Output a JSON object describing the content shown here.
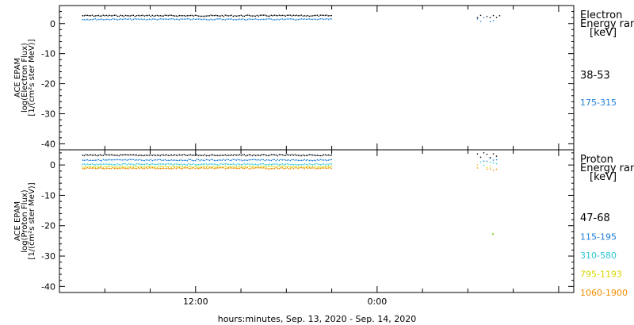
{
  "xlabel": "hours:minutes, Sep. 13, 2020 - Sep. 14, 2020",
  "x_tick_labels": [
    "12:00",
    "0:00"
  ],
  "chart_data": [
    {
      "type": "scatter",
      "ylabel_lines": [
        "ACE EPAM",
        "log(Electron Flux)",
        "[1/(cm²s ster MeV)]"
      ],
      "ylim": [
        -42,
        6
      ],
      "yticks": [
        0,
        -10,
        -20,
        -30,
        -40
      ],
      "x_unit": "hours since Sep. 13, 2020 00:00",
      "xlim": [
        3,
        37
      ],
      "legend": {
        "title_lines": [
          "Electron",
          "Energy ranges",
          "[keV]"
        ]
      },
      "series": [
        {
          "name": "38-53",
          "color": "#000000",
          "value": 2.8,
          "segments": [
            [
              4.5,
              21.0
            ],
            [
              30.6,
              32.1
            ]
          ]
        },
        {
          "name": "175-315",
          "color": "#1e7fd6",
          "value": 1.6,
          "segments": [
            [
              4.5,
              21.0
            ],
            [
              30.6,
              31.7
            ]
          ]
        }
      ]
    },
    {
      "type": "scatter",
      "ylabel_lines": [
        "ACE EPAM",
        "log(Proton Flux)",
        "[1/(cm²s ster MeV)]"
      ],
      "ylim": [
        -42,
        5
      ],
      "yticks": [
        0,
        -10,
        -20,
        -30,
        -40
      ],
      "x_unit": "hours since Sep. 13, 2020 00:00",
      "xlim": [
        3,
        37
      ],
      "legend": {
        "title_lines": [
          "Proton",
          "Energy ranges",
          "[keV]"
        ]
      },
      "series": [
        {
          "name": "47-68",
          "color": "#000000",
          "value": 3.4,
          "segments": [
            [
              4.5,
              21.0
            ],
            [
              30.6,
              31.9
            ]
          ]
        },
        {
          "name": "115-195",
          "color": "#1e7fd6",
          "value": 1.8,
          "segments": [
            [
              4.5,
              21.0
            ],
            [
              30.6,
              31.9
            ]
          ]
        },
        {
          "name": "310-580",
          "color": "#2cc6d6",
          "value": 0.4,
          "segments": [
            [
              4.5,
              21.0
            ],
            [
              30.6,
              31.9
            ]
          ]
        },
        {
          "name": "795-1193",
          "color": "#d8d800",
          "value": -0.4,
          "segments": [
            [
              4.5,
              21.0
            ],
            [
              30.6,
              31.9
            ]
          ]
        },
        {
          "name": "1060-1900",
          "color": "#f08c00",
          "value": -0.9,
          "segments": [
            [
              4.5,
              21.0
            ],
            [
              30.6,
              31.9
            ]
          ]
        }
      ],
      "isolated_points": [
        {
          "x": 31.6,
          "y": -22.5,
          "color": "#7cd020"
        }
      ]
    }
  ]
}
